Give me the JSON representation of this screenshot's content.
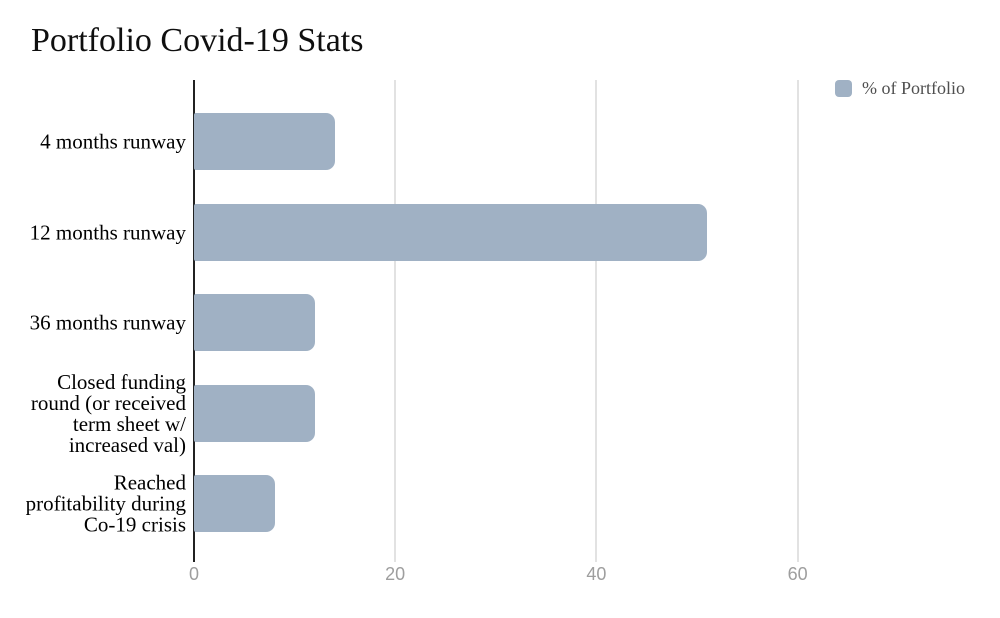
{
  "title": "Portfolio Covid-19 Stats",
  "legend": {
    "label": "% of Portfolio",
    "swatch_color": "#a0b1c4"
  },
  "chart_data": {
    "type": "bar",
    "orientation": "horizontal",
    "title": "Portfolio Covid-19 Stats",
    "categories": [
      "4 months runway",
      "12 months runway",
      "36 months runway",
      "Closed funding round (or received term sheet w/ increased val)",
      "Reached profitability during Co-19 crisis"
    ],
    "label_lines": [
      [
        "4 months runway"
      ],
      [
        "12 months runway"
      ],
      [
        "36 months runway"
      ],
      [
        "Closed funding",
        "round (or received",
        "term sheet w/",
        "increased val)"
      ],
      [
        "Reached",
        "profitability during",
        "Co-19 crisis"
      ]
    ],
    "values": [
      14,
      51,
      12,
      12,
      8
    ],
    "series_name": "% of Portfolio",
    "xlabel": "",
    "ylabel": "",
    "xticks": [
      0,
      20,
      40,
      60
    ],
    "xlim": [
      0,
      79
    ],
    "grid": true,
    "legend_position": "top-right",
    "bar_color": "#a0b1c4",
    "axis_color": "#212121",
    "gridline_color": "#e2e2e2",
    "tick_label_color": "#9e9e9e"
  }
}
